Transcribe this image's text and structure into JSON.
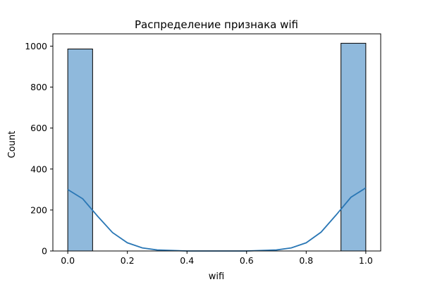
{
  "chart_data": {
    "type": "bar",
    "title": "Распределение признака wifi",
    "xlabel": "wifi",
    "ylabel": "Count",
    "xlim": [
      -0.05,
      1.05
    ],
    "ylim": [
      0,
      1060
    ],
    "x_ticks": [
      0.0,
      0.2,
      0.4,
      0.6,
      0.8,
      1.0
    ],
    "x_tick_labels": [
      "0.0",
      "0.2",
      "0.4",
      "0.6",
      "0.8",
      "1.0"
    ],
    "y_ticks": [
      0,
      200,
      400,
      600,
      800,
      1000
    ],
    "y_tick_labels": [
      "0",
      "200",
      "400",
      "600",
      "800",
      "1000"
    ],
    "bins": [
      {
        "x0": 0.0,
        "x1": 0.0833,
        "count": 986
      },
      {
        "x0": 0.9167,
        "x1": 1.0,
        "count": 1014
      }
    ],
    "kde": {
      "x": [
        0.0,
        0.05,
        0.1,
        0.15,
        0.2,
        0.25,
        0.3,
        0.4,
        0.5,
        0.6,
        0.7,
        0.75,
        0.8,
        0.85,
        0.9,
        0.95,
        1.0
      ],
      "y": [
        300,
        255,
        170,
        90,
        40,
        15,
        5,
        0,
        0,
        0,
        5,
        15,
        40,
        92,
        175,
        262,
        308
      ]
    },
    "grid": false,
    "colors": {
      "bar_fill": "#8fb9dc",
      "bar_edge": "#000000",
      "kde_line": "#2a77b5"
    }
  }
}
